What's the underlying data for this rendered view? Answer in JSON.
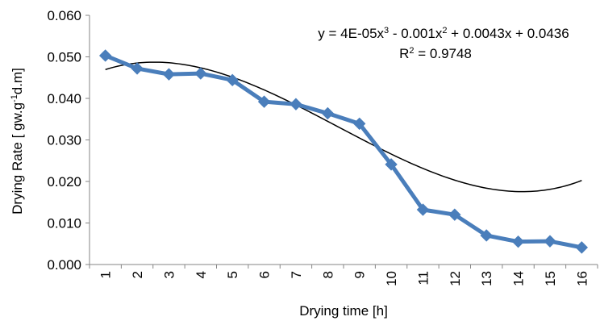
{
  "chart_data": {
    "type": "line",
    "x": [
      1,
      2,
      3,
      4,
      5,
      6,
      7,
      8,
      9,
      10,
      11,
      12,
      13,
      14,
      15,
      16
    ],
    "series": [
      {
        "values": [
          0.0503,
          0.0472,
          0.0458,
          0.046,
          0.0444,
          0.0392,
          0.0386,
          0.0364,
          0.0339,
          0.0241,
          0.0132,
          0.012,
          0.007,
          0.0055,
          0.0056,
          0.0041
        ],
        "color": "#4a7ebb",
        "marker": "diamond"
      }
    ],
    "trendline": {
      "type": "polynomial",
      "order": 3,
      "coefficients": {
        "a3": 4e-05,
        "a2": -0.001,
        "a1": 0.0043,
        "a0": 0.0436
      },
      "color": "#000000"
    },
    "xlabel": "Drying time [h]",
    "ylabel_main": "Drying Rate [ gw.g",
    "ylabel_sup": "-1",
    "ylabel_tail": "d.m]",
    "ylim": [
      0,
      0.06
    ],
    "yticks": [
      "0.000",
      "0.010",
      "0.020",
      "0.030",
      "0.040",
      "0.050",
      "0.060"
    ],
    "xticks": [
      "1",
      "2",
      "3",
      "4",
      "5",
      "6",
      "7",
      "8",
      "9",
      "10",
      "11",
      "12",
      "13",
      "14",
      "15",
      "16"
    ],
    "equation_parts": [
      "y = 4E-05x",
      "3",
      " - 0.001x",
      "2",
      " + 0.0043x + 0.0436"
    ],
    "r2_parts": [
      "R",
      "2",
      " = 0.9748"
    ],
    "grid": false,
    "legend": "none"
  }
}
